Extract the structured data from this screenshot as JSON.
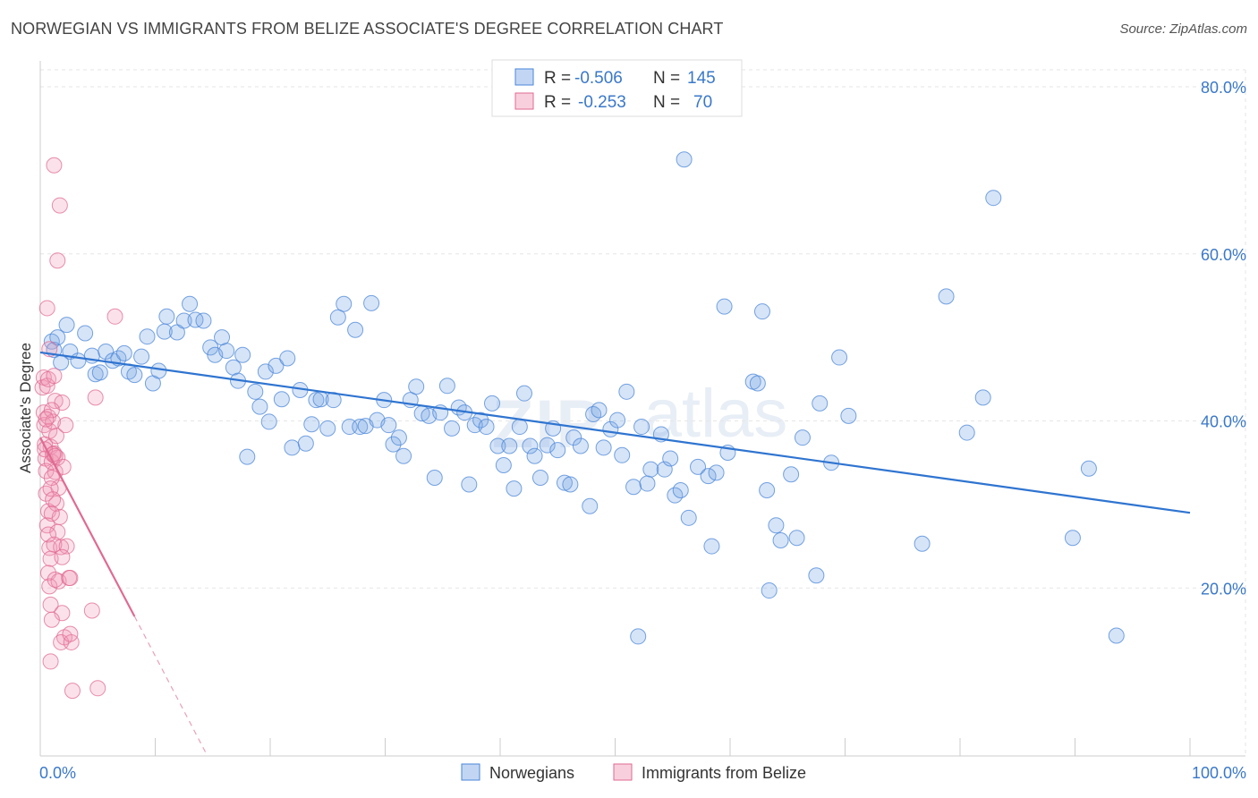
{
  "title": "NORWEGIAN VS IMMIGRANTS FROM BELIZE ASSOCIATE'S DEGREE CORRELATION CHART",
  "source": "Source: ZipAtlas.com",
  "watermark": {
    "zip": "ZIP",
    "atlas": "atlas"
  },
  "chart_data": {
    "type": "scatter",
    "ylabel": "Associate's Degree",
    "xlim": [
      0,
      100
    ],
    "ylim": [
      0,
      82
    ],
    "x_tick_labels": [
      "0.0%",
      "100.0%"
    ],
    "y_ticks": [
      {
        "value": 20,
        "label": "20.0%"
      },
      {
        "value": 40,
        "label": "40.0%"
      },
      {
        "value": 60,
        "label": "60.0%"
      },
      {
        "value": 80,
        "label": "80.0%"
      }
    ],
    "grid": true,
    "legend": {
      "placement": "top-center",
      "rows": [
        {
          "r_label": "R =",
          "r_value": "-0.506",
          "n_label": "N =",
          "n_value": "145"
        },
        {
          "r_label": "R =",
          "r_value": "-0.253",
          "n_label": "N =",
          "n_value": "70"
        }
      ]
    },
    "series": [
      {
        "name": "Norwegians",
        "color": "#4a86d8",
        "fill": "rgba(120,165,230,0.30)",
        "trend": {
          "x": [
            0,
            100
          ],
          "y": [
            48.2,
            29.0
          ],
          "style": "solid"
        },
        "points": [
          [
            1.0,
            49.5
          ],
          [
            1.2,
            48.5
          ],
          [
            1.5,
            50.0
          ],
          [
            1.8,
            47.0
          ],
          [
            2.3,
            51.5
          ],
          [
            2.6,
            48.3
          ],
          [
            3.3,
            47.2
          ],
          [
            3.9,
            50.5
          ],
          [
            4.5,
            47.8
          ],
          [
            4.8,
            45.6
          ],
          [
            5.2,
            45.8
          ],
          [
            5.7,
            48.3
          ],
          [
            6.3,
            47.2
          ],
          [
            6.8,
            47.5
          ],
          [
            7.3,
            48.1
          ],
          [
            7.7,
            45.9
          ],
          [
            8.2,
            45.5
          ],
          [
            8.8,
            47.7
          ],
          [
            9.3,
            50.1
          ],
          [
            9.8,
            44.5
          ],
          [
            10.3,
            46.0
          ],
          [
            11.0,
            52.5
          ],
          [
            10.8,
            50.7
          ],
          [
            11.9,
            50.6
          ],
          [
            12.5,
            52.0
          ],
          [
            13.0,
            54.0
          ],
          [
            13.5,
            52.1
          ],
          [
            14.2,
            52.0
          ],
          [
            14.8,
            48.8
          ],
          [
            15.2,
            47.9
          ],
          [
            15.8,
            50.0
          ],
          [
            16.2,
            48.4
          ],
          [
            16.8,
            46.4
          ],
          [
            17.2,
            44.8
          ],
          [
            17.6,
            47.9
          ],
          [
            18.0,
            35.7
          ],
          [
            18.7,
            43.5
          ],
          [
            19.1,
            41.7
          ],
          [
            19.6,
            45.9
          ],
          [
            19.9,
            39.9
          ],
          [
            20.5,
            46.6
          ],
          [
            21.0,
            42.6
          ],
          [
            21.5,
            47.5
          ],
          [
            21.9,
            36.8
          ],
          [
            22.6,
            43.7
          ],
          [
            23.1,
            37.3
          ],
          [
            23.6,
            39.6
          ],
          [
            24.0,
            42.5
          ],
          [
            24.4,
            42.6
          ],
          [
            25.0,
            39.1
          ],
          [
            25.5,
            42.5
          ],
          [
            25.9,
            52.4
          ],
          [
            26.4,
            54.0
          ],
          [
            26.9,
            39.3
          ],
          [
            27.4,
            50.9
          ],
          [
            27.8,
            39.3
          ],
          [
            28.3,
            39.4
          ],
          [
            28.8,
            54.1
          ],
          [
            29.3,
            40.1
          ],
          [
            29.9,
            42.5
          ],
          [
            30.3,
            39.5
          ],
          [
            30.7,
            37.2
          ],
          [
            31.2,
            38.0
          ],
          [
            31.6,
            35.8
          ],
          [
            32.2,
            42.5
          ],
          [
            32.7,
            44.1
          ],
          [
            33.2,
            40.9
          ],
          [
            33.8,
            40.6
          ],
          [
            34.3,
            33.2
          ],
          [
            34.8,
            41.0
          ],
          [
            35.4,
            44.2
          ],
          [
            35.8,
            39.1
          ],
          [
            36.4,
            41.6
          ],
          [
            36.9,
            41.0
          ],
          [
            37.3,
            32.4
          ],
          [
            37.8,
            39.5
          ],
          [
            38.3,
            40.1
          ],
          [
            38.8,
            39.3
          ],
          [
            39.3,
            42.1
          ],
          [
            39.8,
            37.0
          ],
          [
            40.3,
            34.7
          ],
          [
            40.8,
            37.0
          ],
          [
            41.2,
            31.9
          ],
          [
            41.7,
            39.3
          ],
          [
            42.1,
            43.3
          ],
          [
            42.6,
            37.0
          ],
          [
            43.0,
            35.8
          ],
          [
            43.5,
            33.2
          ],
          [
            44.1,
            37.1
          ],
          [
            44.6,
            39.1
          ],
          [
            45.0,
            36.5
          ],
          [
            45.6,
            32.6
          ],
          [
            46.1,
            32.4
          ],
          [
            46.4,
            38.0
          ],
          [
            47.0,
            37.0
          ],
          [
            47.8,
            29.8
          ],
          [
            48.1,
            40.8
          ],
          [
            48.6,
            41.3
          ],
          [
            49.0,
            36.8
          ],
          [
            49.6,
            39.0
          ],
          [
            50.2,
            40.1
          ],
          [
            50.6,
            35.9
          ],
          [
            51.0,
            43.5
          ],
          [
            51.6,
            32.1
          ],
          [
            52.0,
            14.2
          ],
          [
            52.3,
            39.3
          ],
          [
            52.8,
            32.5
          ],
          [
            53.1,
            34.2
          ],
          [
            54.0,
            38.4
          ],
          [
            54.3,
            34.2
          ],
          [
            54.8,
            35.5
          ],
          [
            55.2,
            31.1
          ],
          [
            55.7,
            31.7
          ],
          [
            56.0,
            71.3
          ],
          [
            56.4,
            28.4
          ],
          [
            57.2,
            34.5
          ],
          [
            58.1,
            33.4
          ],
          [
            58.4,
            25.0
          ],
          [
            58.8,
            33.8
          ],
          [
            59.5,
            53.7
          ],
          [
            59.8,
            36.2
          ],
          [
            62.0,
            44.7
          ],
          [
            62.4,
            44.5
          ],
          [
            62.8,
            53.1
          ],
          [
            63.4,
            19.7
          ],
          [
            63.2,
            31.7
          ],
          [
            64.0,
            27.5
          ],
          [
            64.4,
            25.7
          ],
          [
            65.3,
            33.6
          ],
          [
            65.8,
            26.0
          ],
          [
            66.3,
            38.0
          ],
          [
            67.5,
            21.5
          ],
          [
            67.8,
            42.1
          ],
          [
            68.8,
            35.0
          ],
          [
            69.5,
            47.6
          ],
          [
            70.3,
            40.6
          ],
          [
            78.8,
            54.9
          ],
          [
            80.6,
            38.6
          ],
          [
            82.0,
            42.8
          ],
          [
            82.9,
            66.7
          ],
          [
            89.8,
            26.0
          ],
          [
            93.6,
            14.3
          ],
          [
            91.2,
            34.3
          ],
          [
            76.7,
            25.3
          ]
        ]
      },
      {
        "name": "Immigrants from Belize",
        "color": "#e06a92",
        "fill": "rgba(240,150,180,0.28)",
        "trend": {
          "x": [
            0,
            8.2
          ],
          "y": [
            38.0,
            16.6
          ],
          "dash_x": [
            8.2,
            14.5
          ],
          "dash_y": [
            16.6,
            0
          ],
          "style": "solid+dashed"
        },
        "points": [
          [
            0.2,
            44.0
          ],
          [
            0.3,
            41.0
          ],
          [
            0.35,
            39.5
          ],
          [
            0.4,
            37.2
          ],
          [
            0.45,
            35.5
          ],
          [
            0.5,
            34.0
          ],
          [
            0.3,
            45.2
          ],
          [
            0.6,
            44.2
          ],
          [
            0.7,
            40.5
          ],
          [
            0.8,
            38.8
          ],
          [
            0.9,
            36.9
          ],
          [
            1.0,
            35.1
          ],
          [
            0.5,
            31.3
          ],
          [
            0.7,
            29.2
          ],
          [
            0.6,
            27.5
          ],
          [
            0.8,
            24.8
          ],
          [
            0.9,
            23.5
          ],
          [
            0.7,
            21.8
          ],
          [
            0.8,
            20.2
          ],
          [
            0.9,
            18.0
          ],
          [
            0.6,
            53.5
          ],
          [
            0.8,
            48.6
          ],
          [
            0.7,
            45.0
          ],
          [
            1.2,
            45.4
          ],
          [
            1.3,
            42.4
          ],
          [
            1.1,
            39.9
          ],
          [
            1.4,
            38.2
          ],
          [
            1.2,
            36.1
          ],
          [
            1.5,
            35.6
          ],
          [
            1.3,
            33.9
          ],
          [
            1.6,
            32.0
          ],
          [
            1.4,
            30.1
          ],
          [
            1.7,
            28.5
          ],
          [
            1.5,
            26.7
          ],
          [
            1.8,
            24.9
          ],
          [
            1.6,
            20.8
          ],
          [
            1.9,
            17.0
          ],
          [
            2.1,
            14.1
          ],
          [
            1.8,
            13.5
          ],
          [
            2.7,
            13.5
          ],
          [
            0.9,
            11.2
          ],
          [
            2.8,
            7.7
          ],
          [
            5.0,
            8.0
          ],
          [
            1.2,
            70.6
          ],
          [
            1.7,
            65.8
          ],
          [
            1.5,
            59.2
          ],
          [
            6.5,
            52.5
          ],
          [
            4.8,
            42.8
          ],
          [
            1.9,
            42.2
          ],
          [
            2.2,
            39.5
          ],
          [
            1.0,
            41.3
          ],
          [
            0.5,
            40.2
          ],
          [
            0.4,
            36.6
          ],
          [
            1.1,
            36.0
          ],
          [
            1.3,
            35.8
          ],
          [
            2.0,
            34.5
          ],
          [
            1.0,
            33.2
          ],
          [
            0.9,
            31.9
          ],
          [
            1.1,
            30.6
          ],
          [
            1.0,
            28.9
          ],
          [
            0.7,
            26.4
          ],
          [
            1.2,
            25.2
          ],
          [
            2.3,
            25.0
          ],
          [
            1.9,
            23.7
          ],
          [
            2.5,
            21.2
          ],
          [
            2.6,
            21.2
          ],
          [
            1.3,
            21.0
          ],
          [
            4.5,
            17.3
          ],
          [
            2.6,
            14.5
          ],
          [
            1.0,
            16.2
          ]
        ]
      }
    ]
  }
}
